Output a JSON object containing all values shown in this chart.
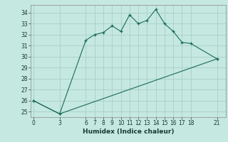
{
  "xlabel": "Humidex (Indice chaleur)",
  "bg_color": "#c5e8e0",
  "grid_color": "#a8cfc8",
  "line_color": "#1a6b5a",
  "line1_x": [
    0,
    3,
    6,
    7,
    8,
    9,
    10,
    11,
    12,
    13,
    14,
    15,
    16,
    17,
    18,
    21
  ],
  "line1_y": [
    26,
    24.8,
    31.5,
    32.0,
    32.2,
    32.8,
    32.3,
    33.8,
    33.0,
    33.3,
    34.3,
    33.0,
    32.3,
    31.3,
    31.2,
    29.8
  ],
  "line2_x": [
    0,
    3,
    21
  ],
  "line2_y": [
    26,
    24.8,
    29.8
  ],
  "xticks": [
    0,
    3,
    6,
    7,
    8,
    9,
    10,
    11,
    12,
    13,
    14,
    15,
    16,
    17,
    18,
    21
  ],
  "yticks": [
    25,
    26,
    27,
    28,
    29,
    30,
    31,
    32,
    33,
    34
  ],
  "xlim": [
    -0.3,
    22
  ],
  "ylim": [
    24.5,
    34.7
  ],
  "axis_fontsize": 6.5,
  "tick_fontsize": 5.5
}
